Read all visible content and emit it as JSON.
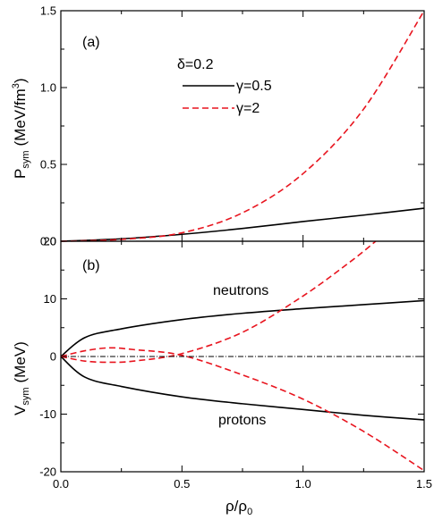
{
  "chart_data": [
    {
      "type": "line",
      "panel_label": "(a)",
      "annotation": "δ=0.2",
      "xlim": [
        0,
        1.5
      ],
      "ylim": [
        0,
        1.5
      ],
      "xticks": [
        "0.0",
        "0.5",
        "1.0",
        "1.5"
      ],
      "yticks": [
        "0.0",
        "0.5",
        "1.0",
        "1.5"
      ],
      "ylabel": {
        "main": "P",
        "sub": "sym",
        "unit": "(MeV/fm",
        "sup": "3",
        "close": ")"
      },
      "legend_placement": "top-center",
      "series": [
        {
          "name": "γ=0.5",
          "style": "solid",
          "color": "#000000",
          "x": [
            0,
            0.25,
            0.5,
            0.75,
            1.0,
            1.25,
            1.5
          ],
          "y": [
            0,
            0.016,
            0.045,
            0.083,
            0.128,
            0.17,
            0.215
          ]
        },
        {
          "name": "γ=2",
          "style": "dashed",
          "color": "#e8141e",
          "x": [
            0,
            0.25,
            0.5,
            0.75,
            1.0,
            1.25,
            1.5
          ],
          "y": [
            0,
            0.012,
            0.055,
            0.185,
            0.44,
            0.86,
            1.5
          ]
        },
        {
          "name": "",
          "style": "dashdot",
          "color": "#000000",
          "x": [
            0,
            1.5
          ],
          "y": [
            0,
            0
          ]
        }
      ]
    },
    {
      "type": "line",
      "panel_label": "(b)",
      "xlim": [
        0,
        1.5
      ],
      "ylim": [
        -20,
        20
      ],
      "xticks": [
        "0.0",
        "0.5",
        "1.0",
        "1.5"
      ],
      "yticks": [
        "-20",
        "-10",
        "0",
        "10",
        "20"
      ],
      "xlabel": {
        "main": "ρ/ρ",
        "sub": "0"
      },
      "ylabel": {
        "main": "V",
        "sub": "sym",
        "unit": "(MeV)"
      },
      "annotations": [
        "neutrons",
        "protons"
      ],
      "series": [
        {
          "label": "neutrons γ=0.5",
          "style": "solid",
          "color": "#000000",
          "x": [
            0,
            0.1,
            0.25,
            0.5,
            0.75,
            1.0,
            1.25,
            1.5
          ],
          "y": [
            0,
            3.3,
            4.8,
            6.4,
            7.5,
            8.3,
            9.0,
            9.7
          ]
        },
        {
          "label": "protons γ=0.5",
          "style": "solid",
          "color": "#000000",
          "x": [
            0,
            0.1,
            0.25,
            0.5,
            0.75,
            1.0,
            1.25,
            1.5
          ],
          "y": [
            0,
            -3.6,
            -5.2,
            -7.0,
            -8.2,
            -9.2,
            -10.2,
            -11.0
          ]
        },
        {
          "label": "neutrons γ=2",
          "style": "dashed",
          "color": "#e8141e",
          "x": [
            0,
            0.1,
            0.2,
            0.3,
            0.5,
            0.75,
            1.0,
            1.2,
            1.3
          ],
          "y": [
            0,
            -0.8,
            -1.0,
            -0.8,
            0.5,
            4.2,
            10.5,
            16.6,
            20
          ]
        },
        {
          "label": "protons γ=2",
          "style": "dashed",
          "color": "#e8141e",
          "x": [
            0,
            0.1,
            0.2,
            0.3,
            0.5,
            0.75,
            1.0,
            1.25,
            1.5
          ],
          "y": [
            0,
            1.0,
            1.5,
            1.2,
            0.2,
            -3.2,
            -7.4,
            -13.0,
            -19.8
          ]
        },
        {
          "label": "",
          "style": "dashdot",
          "color": "#000000",
          "x": [
            0,
            1.5
          ],
          "y": [
            0,
            0
          ]
        }
      ]
    }
  ]
}
